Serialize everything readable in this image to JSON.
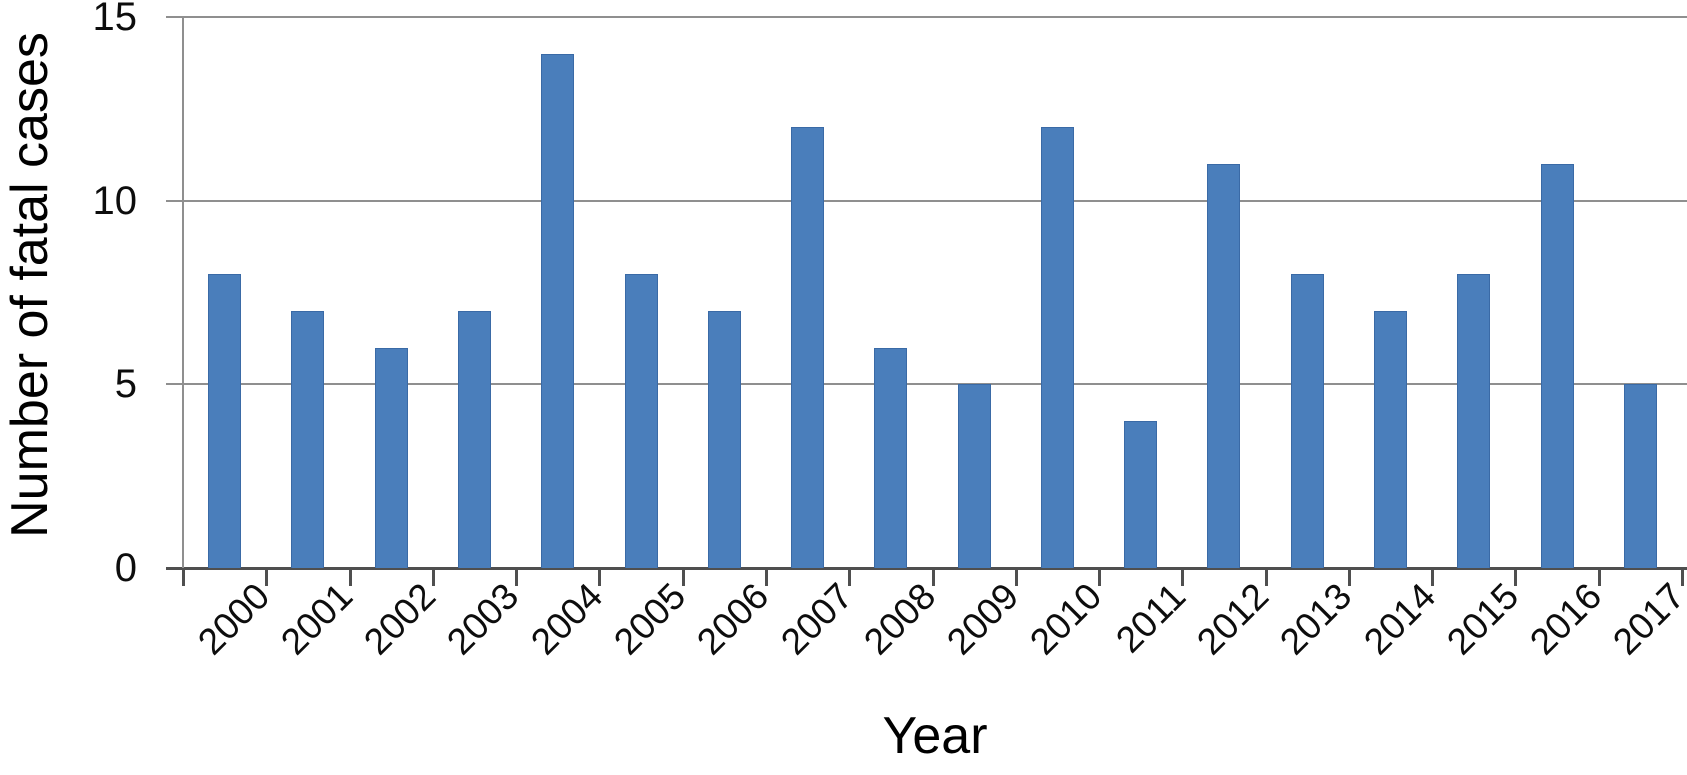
{
  "chart_data": {
    "type": "bar",
    "title": "",
    "categories": [
      "2000",
      "2001",
      "2002",
      "2003",
      "2004",
      "2005",
      "2006",
      "2007",
      "2008",
      "2009",
      "2010",
      "2011",
      "2012",
      "2013",
      "2014",
      "2015",
      "2016",
      "2017"
    ],
    "values": [
      8,
      7,
      6,
      7,
      14,
      8,
      7,
      12,
      6,
      5,
      12,
      4,
      11,
      8,
      7,
      8,
      11,
      5
    ],
    "xlabel": "Year",
    "ylabel": "Number of fatal cases",
    "ylim": [
      0,
      15
    ],
    "yticks": [
      0,
      5,
      10,
      15
    ],
    "grid": true,
    "legend": false,
    "bar_color": "#4a7ebb",
    "bar_border_color": "#3a6aa6",
    "gridline_color": "#8f8f8f",
    "axis_color": "#4f4f4f",
    "text_color": "#0d0d0d",
    "background_color": "#ffffff"
  }
}
